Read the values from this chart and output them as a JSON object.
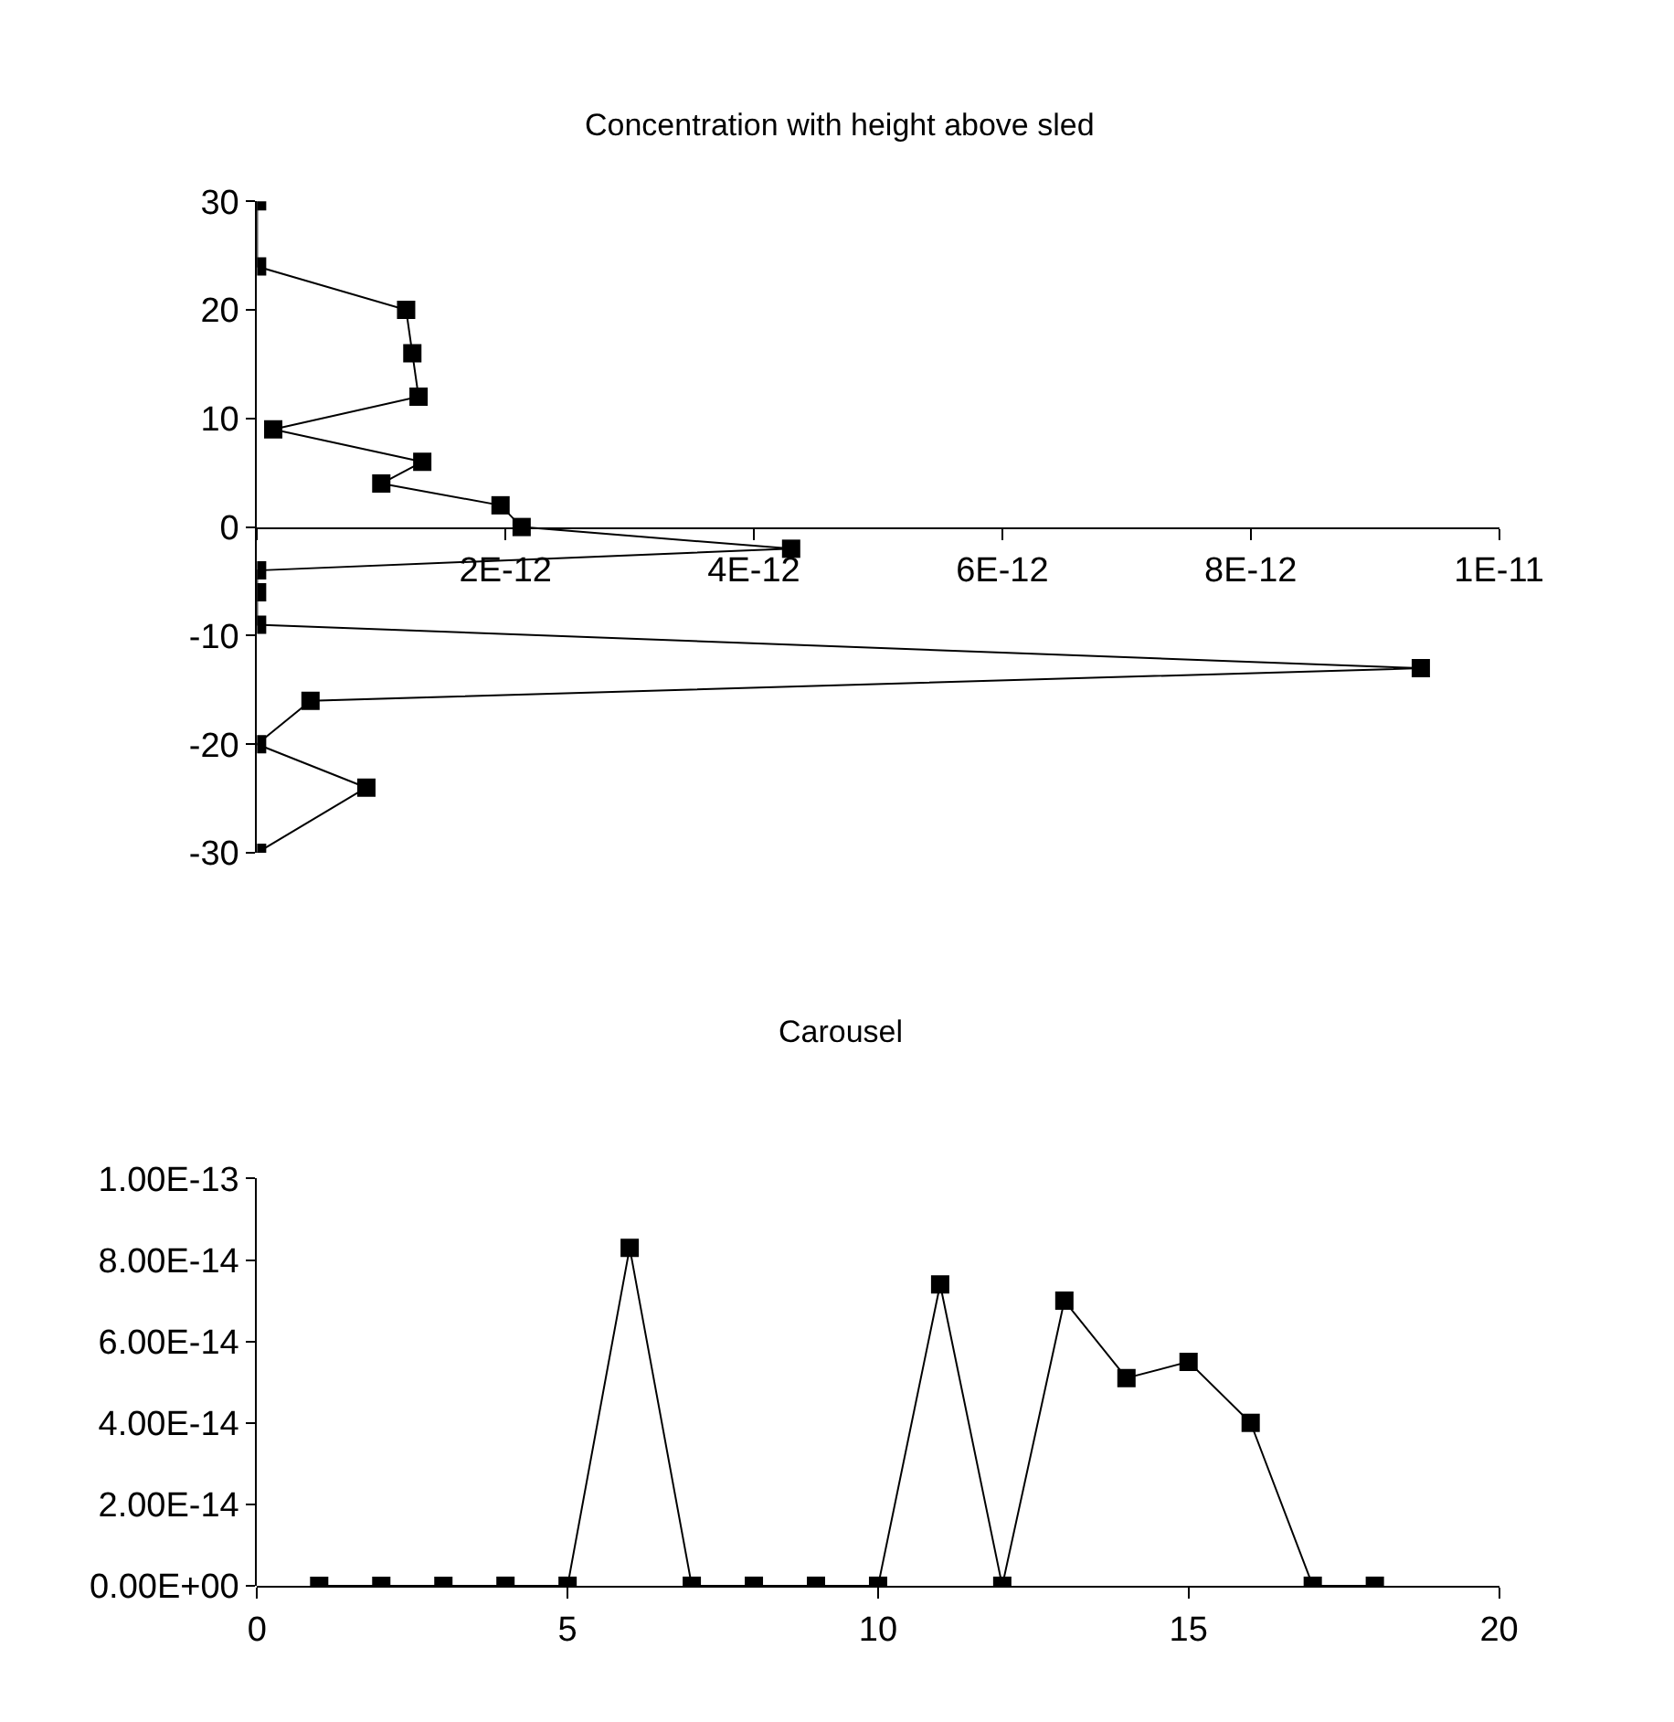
{
  "chart_data": [
    {
      "type": "line",
      "title": "Concentration with height above sled",
      "marker": "square",
      "series": [
        {
          "color": "#000000",
          "x": [
            0,
            0,
            1.2e-12,
            1.25e-12,
            1.3e-12,
            1.3e-13,
            1.33e-12,
            1e-12,
            1.96e-12,
            2.13e-12,
            4.3e-12,
            0,
            0,
            0,
            9.37e-12,
            4.3e-13,
            0,
            8.8e-13,
            0
          ],
          "values": [
            30,
            24,
            20,
            16,
            12,
            9,
            6,
            4,
            2,
            0,
            -2,
            -4,
            -6,
            -9,
            -13,
            -16,
            -20,
            -24,
            -30
          ]
        }
      ],
      "xlim": [
        0,
        1e-11
      ],
      "xticks": [
        {
          "value": 0,
          "label": null
        },
        {
          "value": 2e-12,
          "label": "2E-12"
        },
        {
          "value": 4e-12,
          "label": "4E-12"
        },
        {
          "value": 6e-12,
          "label": "6E-12"
        },
        {
          "value": 8e-12,
          "label": "8E-12"
        },
        {
          "value": 1e-11,
          "label": "1E-11"
        }
      ],
      "ylim": [
        -30,
        30
      ],
      "yticks": [
        -30,
        -20,
        -10,
        0,
        10,
        20,
        30
      ]
    },
    {
      "type": "line",
      "title": "Carousel",
      "marker": "square",
      "x": [
        1,
        2,
        3,
        4,
        5,
        6,
        7,
        8,
        9,
        10,
        11,
        12,
        13,
        14,
        15,
        16,
        17,
        18
      ],
      "series": [
        {
          "color": "#000000",
          "values": [
            0,
            0,
            0,
            0,
            0,
            8.3e-14,
            0,
            0,
            0,
            0,
            7.4e-14,
            0,
            7e-14,
            5.1e-14,
            5.5e-14,
            4e-14,
            0,
            0
          ]
        }
      ],
      "xlim": [
        0,
        20
      ],
      "xticks": [
        0,
        5,
        10,
        15,
        20
      ],
      "ylim": [
        0,
        1e-13
      ],
      "yticks": [
        {
          "value": 0,
          "label": "0.00E+00"
        },
        {
          "value": 2e-14,
          "label": "2.00E-14"
        },
        {
          "value": 4e-14,
          "label": "4.00E-14"
        },
        {
          "value": 6e-14,
          "label": "6.00E-14"
        },
        {
          "value": 8e-14,
          "label": "8.00E-14"
        },
        {
          "value": 1e-13,
          "label": "1.00E-13"
        }
      ]
    }
  ]
}
